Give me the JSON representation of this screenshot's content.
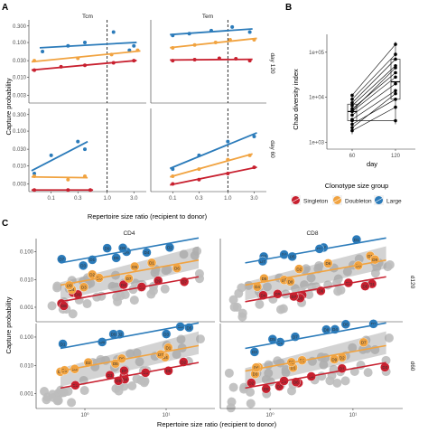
{
  "figure": {
    "panel_labels": [
      "A",
      "B",
      "C"
    ]
  },
  "colors": {
    "Singleton": "#c8202f",
    "Doubleton": "#f1a340",
    "Large": "#2b7bba",
    "background_points": "#bdbdbd"
  },
  "legend": {
    "title": "Clonotype size group",
    "items": [
      "Singleton",
      "Doubleton",
      "Large"
    ]
  },
  "chart_data": [
    {
      "panel": "A",
      "type": "scatter",
      "xlabel": "Repertoire size ratio (recipient to donor)",
      "ylabel": "Capture probability",
      "x_scale": "log",
      "y_scale": "log",
      "x_ticks": [
        "0.1",
        "0.3",
        "1.0",
        "3.0"
      ],
      "y_ticks": [
        "0.003",
        "0.010",
        "0.030",
        "0.100",
        "0.300"
      ],
      "column_strips": [
        "Tcm",
        "Tem"
      ],
      "row_strips": [
        "day 120",
        "day 60"
      ],
      "reference_line_x": 1.0,
      "facets": [
        {
          "column": "Tcm",
          "row": "day 120",
          "series": [
            {
              "name": "Large",
              "points": [
                [
                  0.07,
                  0.055
                ],
                [
                  0.2,
                  0.08
                ],
                [
                  0.4,
                  0.1
                ],
                [
                  1.3,
                  0.2
                ],
                [
                  2.5,
                  0.06
                ],
                [
                  3.0,
                  0.08
                ]
              ]
            },
            {
              "name": "Doubleton",
              "points": [
                [
                  0.05,
                  0.03
                ],
                [
                  0.3,
                  0.035
                ],
                [
                  1.2,
                  0.045
                ],
                [
                  3.5,
                  0.06
                ]
              ]
            },
            {
              "name": "Singleton",
              "points": [
                [
                  0.05,
                  0.016
                ],
                [
                  0.15,
                  0.02
                ],
                [
                  0.4,
                  0.022
                ],
                [
                  1.3,
                  0.026
                ],
                [
                  3.0,
                  0.03
                ]
              ]
            }
          ]
        },
        {
          "column": "Tem",
          "row": "day 120",
          "series": [
            {
              "name": "Large",
              "points": [
                [
                  0.1,
                  0.16
                ],
                [
                  0.2,
                  0.18
                ],
                [
                  0.5,
                  0.22
                ],
                [
                  1.2,
                  0.28
                ],
                [
                  2.5,
                  0.2
                ]
              ]
            },
            {
              "name": "Doubleton",
              "points": [
                [
                  0.1,
                  0.07
                ],
                [
                  0.25,
                  0.085
                ],
                [
                  0.6,
                  0.1
                ],
                [
                  1.1,
                  0.12
                ],
                [
                  3.0,
                  0.12
                ]
              ]
            },
            {
              "name": "Singleton",
              "points": [
                [
                  0.1,
                  0.03
                ],
                [
                  0.25,
                  0.032
                ],
                [
                  0.7,
                  0.035
                ],
                [
                  1.4,
                  0.034
                ],
                [
                  2.5,
                  0.03
                ]
              ]
            }
          ]
        },
        {
          "column": "Tcm",
          "row": "day 60",
          "series": [
            {
              "name": "Large",
              "points": [
                [
                  0.05,
                  0.006
                ],
                [
                  0.1,
                  0.02
                ],
                [
                  0.3,
                  0.05
                ],
                [
                  0.4,
                  0.03
                ]
              ]
            },
            {
              "name": "Doubleton",
              "points": [
                [
                  0.05,
                  0.005
                ],
                [
                  0.2,
                  0.004
                ],
                [
                  0.4,
                  0.005
                ]
              ]
            },
            {
              "name": "Singleton",
              "points": [
                [
                  0.05,
                  0.002
                ],
                [
                  0.2,
                  0.002
                ],
                [
                  0.5,
                  0.002
                ]
              ]
            }
          ]
        },
        {
          "column": "Tem",
          "row": "day 60",
          "series": [
            {
              "name": "Large",
              "points": [
                [
                  0.1,
                  0.008
                ],
                [
                  0.3,
                  0.02
                ],
                [
                  1.0,
                  0.05
                ],
                [
                  3.0,
                  0.07
                ]
              ]
            },
            {
              "name": "Doubleton",
              "points": [
                [
                  0.1,
                  0.005
                ],
                [
                  0.3,
                  0.008
                ],
                [
                  1.0,
                  0.015
                ],
                [
                  2.5,
                  0.02
                ]
              ]
            },
            {
              "name": "Singleton",
              "points": [
                [
                  0.1,
                  0.003
                ],
                [
                  0.3,
                  0.004
                ],
                [
                  1.0,
                  0.006
                ],
                [
                  3.0,
                  0.009
                ]
              ]
            }
          ]
        }
      ]
    },
    {
      "panel": "B",
      "type": "box",
      "xlabel": "day",
      "ylabel": "Chao diversity index",
      "categories": [
        "60",
        "120"
      ],
      "y_scale": "log",
      "y_ticks": [
        "1e+03",
        "1e+04",
        "1e+05"
      ],
      "values_day60": [
        1800,
        2500,
        3200,
        4000,
        4800,
        5500,
        6500,
        7500,
        9000,
        11000,
        3000,
        2100,
        5000
      ],
      "values_day120": [
        6000,
        9000,
        14000,
        20000,
        28000,
        35000,
        50000,
        70000,
        90000,
        150000,
        3000,
        12000,
        45000
      ],
      "box_day60": {
        "q1": 3000,
        "median": 4800,
        "q3": 7000,
        "min": 1500,
        "max": 12000
      },
      "box_day120": {
        "q1": 9000,
        "median": 22000,
        "q3": 70000,
        "min": 2500,
        "max": 170000
      }
    },
    {
      "panel": "C",
      "type": "scatter",
      "xlabel": "Repertoire size ratio (recipient to donor)",
      "ylabel": "Capture probability",
      "x_scale": "log",
      "y_scale": "log",
      "x_ticks": [
        "10⁰",
        "10¹"
      ],
      "y_ticks": [
        "0.001",
        "0.010",
        "0.100"
      ],
      "column_strips": [
        "CD4",
        "CD8"
      ],
      "row_strips": [
        "d120",
        "d60"
      ]
    }
  ]
}
